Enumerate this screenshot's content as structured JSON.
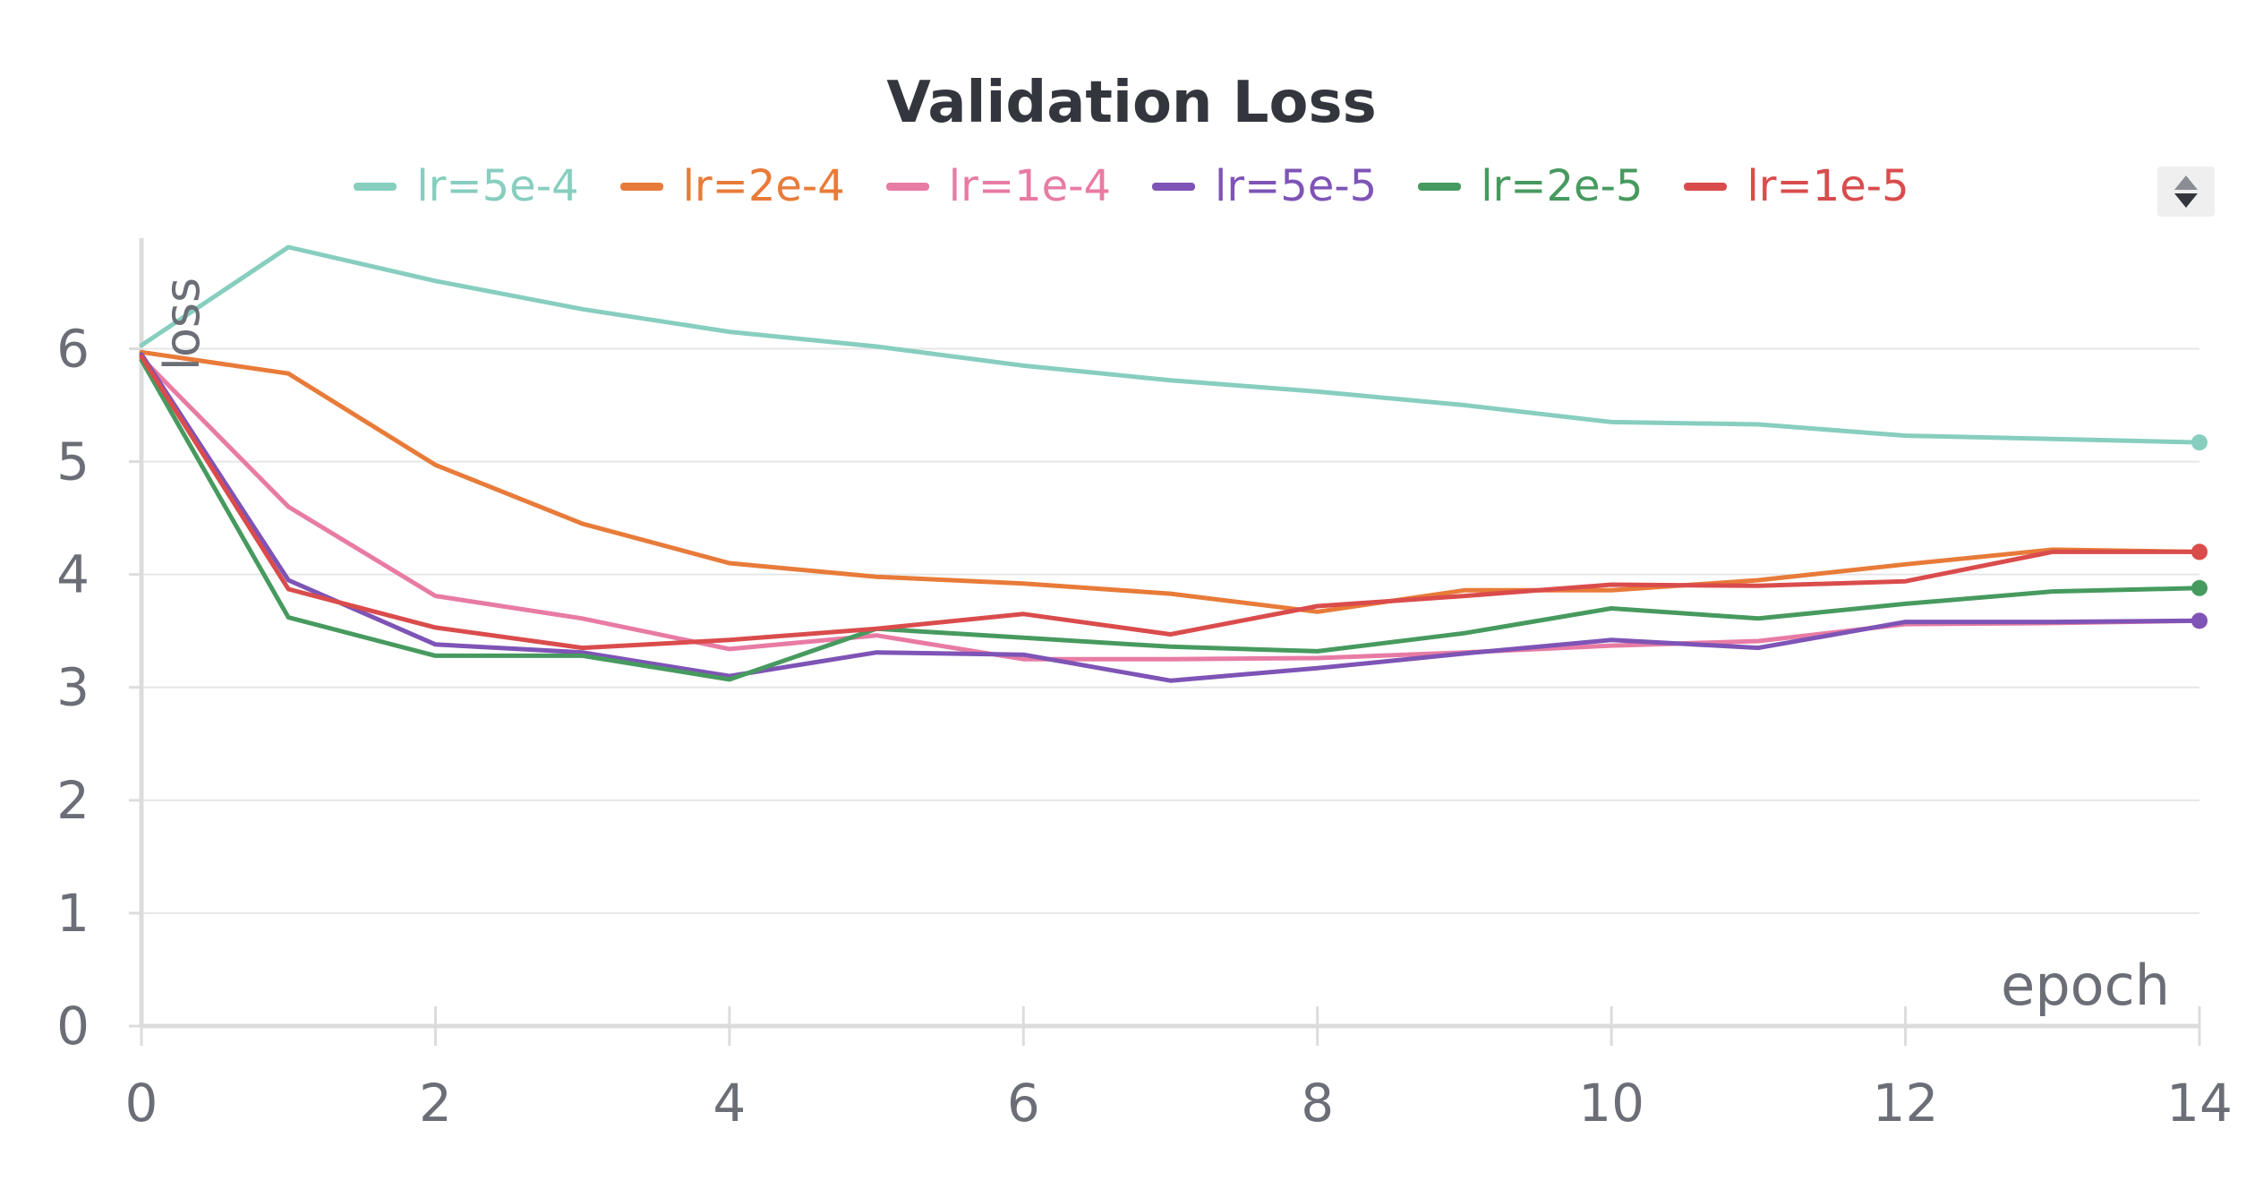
{
  "chart_data": {
    "type": "line",
    "title": "Validation Loss",
    "xlabel": "epoch",
    "ylabel": "loss",
    "xlim": [
      0,
      14
    ],
    "ylim": [
      0,
      6.9
    ],
    "xticks": [
      0,
      2,
      4,
      6,
      8,
      10,
      12,
      14
    ],
    "yticks": [
      0,
      1,
      2,
      3,
      4,
      5,
      6
    ],
    "grid": true,
    "legend_position": "top",
    "x": [
      0,
      1,
      2,
      3,
      4,
      5,
      6,
      7,
      8,
      9,
      10,
      11,
      12,
      13,
      14
    ],
    "series": [
      {
        "name": "lr=5e-4",
        "color": "#87cebf",
        "values": [
          6.03,
          6.9,
          6.6,
          6.35,
          6.15,
          6.02,
          5.85,
          5.72,
          5.62,
          5.5,
          5.35,
          5.33,
          5.23,
          5.2,
          5.17
        ]
      },
      {
        "name": "lr=2e-4",
        "color": "#e87b39",
        "values": [
          5.97,
          5.78,
          4.97,
          4.45,
          4.1,
          3.98,
          3.92,
          3.83,
          3.67,
          3.86,
          3.86,
          3.95,
          4.09,
          4.22,
          4.2
        ]
      },
      {
        "name": "lr=1e-4",
        "color": "#e87ba4",
        "values": [
          5.92,
          4.6,
          3.81,
          3.61,
          3.34,
          3.46,
          3.25,
          3.25,
          3.26,
          3.31,
          3.37,
          3.41,
          3.56,
          3.57,
          3.59
        ]
      },
      {
        "name": "lr=5e-5",
        "color": "#7e54b6",
        "values": [
          5.95,
          3.95,
          3.38,
          3.31,
          3.1,
          3.31,
          3.29,
          3.06,
          3.17,
          3.3,
          3.42,
          3.35,
          3.58,
          3.58,
          3.59
        ]
      },
      {
        "name": "lr=2e-5",
        "color": "#479a5f",
        "values": [
          5.9,
          3.62,
          3.28,
          3.28,
          3.07,
          3.52,
          3.44,
          3.36,
          3.32,
          3.48,
          3.7,
          3.61,
          3.74,
          3.85,
          3.88
        ]
      },
      {
        "name": "lr=1e-5",
        "color": "#da4c4c",
        "values": [
          5.93,
          3.87,
          3.53,
          3.35,
          3.42,
          3.52,
          3.65,
          3.47,
          3.72,
          3.81,
          3.91,
          3.9,
          3.94,
          4.2,
          4.2
        ]
      }
    ]
  }
}
